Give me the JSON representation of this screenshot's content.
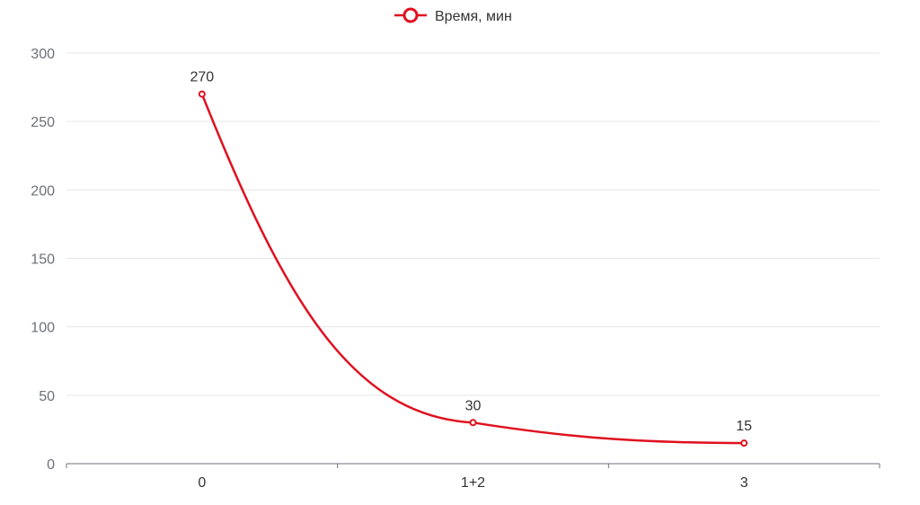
{
  "chart_data": {
    "type": "line",
    "categories": [
      "0",
      "1+2",
      "3"
    ],
    "series": [
      {
        "name": "Время, мин",
        "values": [
          270,
          30,
          15
        ],
        "color": "#e0101f",
        "smooth": true,
        "show_labels": true
      }
    ],
    "ylim": [
      0,
      300
    ],
    "y_ticks": [
      0,
      50,
      100,
      150,
      200,
      250,
      300
    ],
    "grid": true,
    "legend_position": "top-center"
  }
}
